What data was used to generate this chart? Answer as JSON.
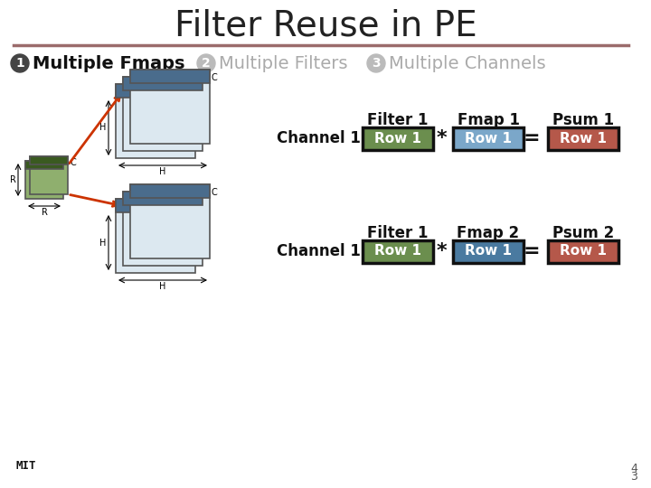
{
  "title": "Filter Reuse in PE",
  "title_fontsize": 28,
  "title_color": "#222222",
  "separator_color": "#9B6B6B",
  "bg_color": "#ffffff",
  "badge1_text": "1",
  "badge2_text": "2",
  "badge3_text": "3",
  "badge1_color": "#444444",
  "badge2_color": "#bbbbbb",
  "badge3_color": "#bbbbbb",
  "label1_text": "Multiple Fmaps",
  "label2_text": "Multiple Filters",
  "label3_text": "Multiple Channels",
  "label1_color": "#111111",
  "label2_color": "#aaaaaa",
  "label3_color": "#aaaaaa",
  "label_fontsize": 14,
  "filter_color": "#6b8e4e",
  "fmap1_color": "#7ba7c9",
  "fmap2_color": "#4a7aa0",
  "psum_color": "#b5584a",
  "box_border_color": "#111111",
  "box_text_color": "#ffffff",
  "row_text": "Row 1",
  "row_fontsize": 11,
  "col1_label": "Filter 1",
  "col2a_label": "Fmap 1",
  "col2b_label": "Fmap 2",
  "col3a_label": "Psum 1",
  "col3b_label": "Psum 2",
  "col_fontsize": 12,
  "channel_label": "Channel 1",
  "channel_fontsize": 12,
  "arrow_color": "#cc3300",
  "diagram_bg_light": "#dce8f0",
  "diagram_bg_dark": "#4a6c8c",
  "diagram_border": "#555555",
  "filter_small_color": "#8faf6e",
  "filter_small_dark": "#3a5a20"
}
